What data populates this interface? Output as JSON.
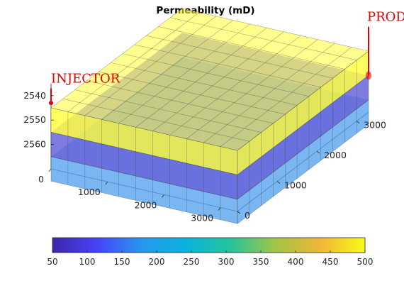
{
  "chart_data": {
    "type": "3d-grid",
    "title": "Permeability (mD)",
    "xlim": [
      0,
      3300
    ],
    "ylim": [
      0,
      3300
    ],
    "zlim": [
      2535,
      2570
    ],
    "z_direction": "reverse",
    "grid_x": [
      0,
      300,
      600,
      900,
      1200,
      1500,
      1800,
      2100,
      2400,
      2700,
      3000,
      3300
    ],
    "grid_y": [
      0,
      300,
      600,
      900,
      1200,
      1500,
      1800,
      2100,
      2400,
      2700,
      3000,
      3300
    ],
    "x_ticks": [
      {
        "label": "0",
        "value": 0
      },
      {
        "label": "1000",
        "value": 1000
      },
      {
        "label": "2000",
        "value": 2000
      },
      {
        "label": "3000",
        "value": 3000
      }
    ],
    "y_ticks": [
      {
        "label": "0",
        "value": 0
      },
      {
        "label": "1000",
        "value": 1000
      },
      {
        "label": "2000",
        "value": 2000
      },
      {
        "label": "3000",
        "value": 3000
      }
    ],
    "z_ticks": [
      {
        "label": "2540",
        "value": 2540
      },
      {
        "label": "2550",
        "value": 2550
      },
      {
        "label": "2560",
        "value": 2560
      }
    ],
    "layers": [
      {
        "top": 2565,
        "bottom": 2575,
        "permeability": 200,
        "color": "#54a3ee"
      },
      {
        "top": 2555,
        "bottom": 2565,
        "permeability": 100,
        "color": "#5b57d8"
      },
      {
        "top": 2545,
        "bottom": 2555,
        "permeability": 500,
        "color": "#ffff33"
      }
    ],
    "wells": [
      {
        "label": "INJECTOR",
        "x": 0,
        "y": 0,
        "z_top": 2537,
        "z_bottom": 2543,
        "color": "#e60000"
      },
      {
        "label": "PRODU",
        "x": 3300,
        "y": 3300,
        "z_top": 2535,
        "z_bottom": 2555,
        "color": "#e60000"
      }
    ],
    "colorbar": {
      "range": [
        50,
        500
      ],
      "ticks": [
        "50",
        "100",
        "150",
        "200",
        "250",
        "300",
        "350",
        "400",
        "450",
        "500"
      ],
      "stops": [
        "#3e26a8",
        "#4743f8",
        "#2797f0",
        "#09b3dd",
        "#27c49a",
        "#a2c544",
        "#f0b639",
        "#f9fb15"
      ]
    }
  }
}
